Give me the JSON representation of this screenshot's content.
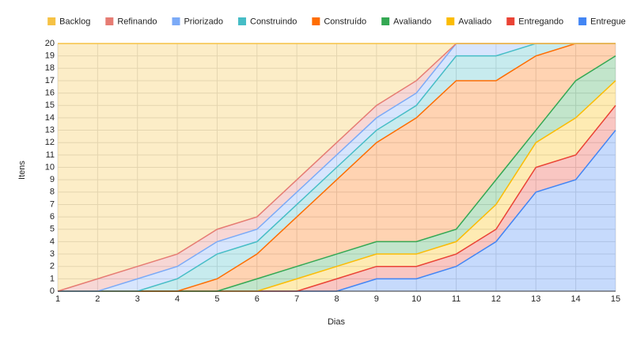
{
  "chart_data": {
    "type": "stacked-area",
    "x_label": "Dias",
    "y_label": "Itens",
    "x": [
      1,
      2,
      3,
      4,
      5,
      6,
      7,
      8,
      9,
      10,
      11,
      12,
      13,
      14,
      15
    ],
    "xlim": [
      1,
      15
    ],
    "xticks": [
      1,
      2,
      3,
      4,
      5,
      6,
      7,
      8,
      9,
      10,
      11,
      12,
      13,
      14,
      15
    ],
    "ylim": [
      0,
      20
    ],
    "yticks": [
      0,
      1,
      2,
      3,
      4,
      5,
      6,
      7,
      8,
      9,
      10,
      11,
      12,
      13,
      14,
      15,
      16,
      17,
      18,
      19,
      20
    ],
    "grid": true,
    "legend": "top",
    "series": [
      {
        "name": "Backlog",
        "color": "#f6c244",
        "values": [
          20,
          19,
          18,
          17,
          15,
          14,
          11,
          8,
          5,
          3,
          0,
          0,
          0,
          0,
          0
        ]
      },
      {
        "name": "Refinando",
        "color": "#e67c73",
        "values": [
          0,
          1,
          1,
          1,
          1,
          1,
          1,
          1,
          1,
          1,
          0,
          0,
          0,
          0,
          0
        ]
      },
      {
        "name": "Priorizado",
        "color": "#7baaf7",
        "values": [
          0,
          0,
          1,
          1,
          1,
          1,
          1,
          1,
          1,
          1,
          1,
          1,
          0,
          0,
          0
        ]
      },
      {
        "name": "Construindo",
        "color": "#46bdc6",
        "values": [
          0,
          0,
          0,
          1,
          2,
          1,
          1,
          1,
          1,
          1,
          2,
          2,
          1,
          0,
          0
        ]
      },
      {
        "name": "Construído",
        "color": "#ff6d01",
        "values": [
          0,
          0,
          0,
          0,
          1,
          2,
          4,
          6,
          8,
          10,
          12,
          8,
          6,
          3,
          1
        ]
      },
      {
        "name": "Avaliando",
        "color": "#34a853",
        "values": [
          0,
          0,
          0,
          0,
          0,
          1,
          1,
          1,
          1,
          1,
          1,
          2,
          1,
          3,
          2
        ]
      },
      {
        "name": "Avaliado",
        "color": "#fbbc04",
        "values": [
          0,
          0,
          0,
          0,
          0,
          0,
          1,
          1,
          1,
          1,
          1,
          2,
          2,
          3,
          2
        ]
      },
      {
        "name": "Entregando",
        "color": "#ea4335",
        "values": [
          0,
          0,
          0,
          0,
          0,
          0,
          0,
          1,
          1,
          1,
          1,
          1,
          2,
          2,
          2
        ]
      },
      {
        "name": "Entregue",
        "color": "#4285f4",
        "values": [
          0,
          0,
          0,
          0,
          0,
          0,
          0,
          0,
          1,
          1,
          2,
          4,
          8,
          9,
          13
        ]
      }
    ]
  }
}
